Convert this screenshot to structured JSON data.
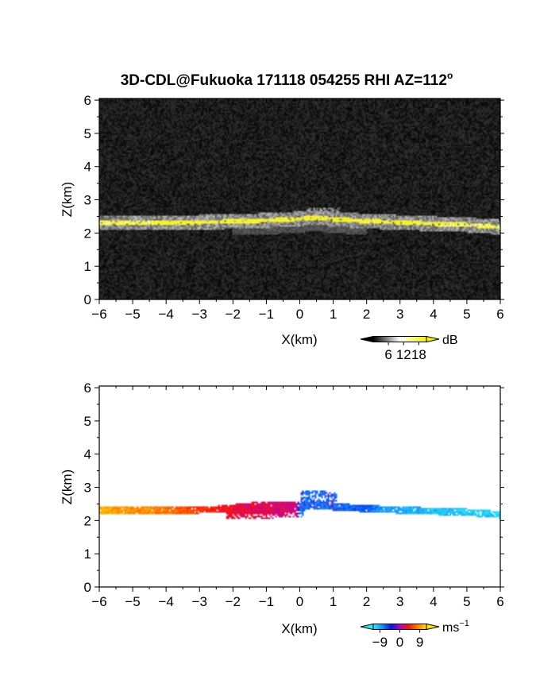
{
  "figure": {
    "title": "3D-CDL@Fukuoka 171118 054255 RHI AZ=112",
    "title_degree": "o"
  },
  "chart_data": [
    {
      "type": "heatmap",
      "panel": "top",
      "quantity": "backscatter intensity",
      "xlabel": "X(km)",
      "ylabel": "Z(km)",
      "xlim": [
        -6,
        6
      ],
      "ylim": [
        0,
        6.05
      ],
      "xticks": [
        -6,
        -5,
        -4,
        -3,
        -2,
        -1,
        0,
        1,
        2,
        3,
        4,
        5,
        6
      ],
      "yticks": [
        0,
        1,
        2,
        3,
        4,
        5,
        6
      ],
      "background_color": "#1c1c1c",
      "layer": {
        "height_profile": [
          [
            -6,
            2.3
          ],
          [
            -4,
            2.3
          ],
          [
            -2,
            2.35
          ],
          [
            -1,
            2.38
          ],
          [
            0,
            2.43
          ],
          [
            0.5,
            2.47
          ],
          [
            1,
            2.42
          ],
          [
            2,
            2.36
          ],
          [
            3,
            2.32
          ],
          [
            4,
            2.28
          ],
          [
            5,
            2.25
          ],
          [
            6,
            2.18
          ]
        ],
        "thickness_km": 0.14,
        "peak_intensity_db": 18,
        "bump": {
          "x_range": [
            0.2,
            1.2
          ],
          "top_km": 2.75
        }
      },
      "colorbar": {
        "unit": "dB",
        "ticks": [
          "6",
          "12",
          "18"
        ],
        "range": [
          0,
          21
        ],
        "colors": [
          "#000000",
          "#ffffff",
          "#f4f000"
        ]
      }
    },
    {
      "type": "heatmap",
      "panel": "bottom",
      "quantity": "radial velocity",
      "xlabel": "X(km)",
      "ylabel": "Z(km)",
      "xlim": [
        -6,
        6
      ],
      "ylim": [
        0,
        6.05
      ],
      "xticks": [
        -6,
        -5,
        -4,
        -3,
        -2,
        -1,
        0,
        1,
        2,
        3,
        4,
        5,
        6
      ],
      "yticks": [
        0,
        1,
        2,
        3,
        4,
        5,
        6
      ],
      "velocity_profile": [
        [
          -6,
          10
        ],
        [
          -4,
          8
        ],
        [
          -3,
          5
        ],
        [
          -2,
          3
        ],
        [
          -1,
          2
        ],
        [
          -0.1,
          1.5
        ],
        [
          0,
          -7
        ],
        [
          1,
          -7
        ],
        [
          2,
          -6
        ],
        [
          2.5,
          -9
        ],
        [
          4,
          -10
        ],
        [
          6,
          -11
        ]
      ],
      "colorbar": {
        "unit": "ms",
        "unit_exponent": "−1",
        "ticks": [
          "−9",
          "0",
          "9"
        ],
        "range": [
          -12,
          12
        ],
        "colors": [
          "#26ecf4",
          "#1a8cff",
          "#0019e6",
          "#b400c8",
          "#ff1400",
          "#ff7a00",
          "#ffe600"
        ]
      }
    }
  ]
}
